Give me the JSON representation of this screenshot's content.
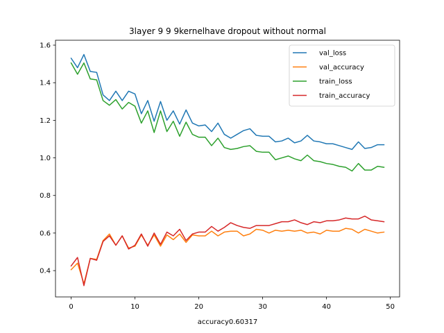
{
  "chart_data": {
    "type": "line",
    "title": "3layer  9 9 9kernelhave dropout without normal",
    "xlabel": "accuracy0.60317",
    "ylabel": "",
    "xlim": [
      -2.45,
      51.45
    ],
    "ylim": [
      0.26,
      1.626
    ],
    "xticks": [
      0,
      10,
      20,
      30,
      40,
      50
    ],
    "yticks": [
      0.4,
      0.6,
      0.8,
      1.0,
      1.2,
      1.4,
      1.6
    ],
    "ytick_labels": [
      "0.4",
      "0.6",
      "0.8",
      "1.0",
      "1.2",
      "1.4",
      "1.6"
    ],
    "grid": false,
    "legend_position": "upper-right",
    "x": [
      0,
      1,
      2,
      3,
      4,
      5,
      6,
      7,
      8,
      9,
      10,
      11,
      12,
      13,
      14,
      15,
      16,
      17,
      18,
      19,
      20,
      21,
      22,
      23,
      24,
      25,
      26,
      27,
      28,
      29,
      30,
      31,
      32,
      33,
      34,
      35,
      36,
      37,
      38,
      39,
      40,
      41,
      42,
      43,
      44,
      45,
      46,
      47,
      48,
      49
    ],
    "series": [
      {
        "name": "val_loss",
        "color": "#1f77b4",
        "values": [
          1.53,
          1.48,
          1.55,
          1.46,
          1.455,
          1.335,
          1.305,
          1.355,
          1.305,
          1.355,
          1.34,
          1.235,
          1.305,
          1.195,
          1.3,
          1.2,
          1.25,
          1.18,
          1.255,
          1.185,
          1.17,
          1.175,
          1.14,
          1.185,
          1.125,
          1.105,
          1.125,
          1.145,
          1.155,
          1.12,
          1.115,
          1.115,
          1.085,
          1.09,
          1.105,
          1.08,
          1.09,
          1.12,
          1.09,
          1.085,
          1.075,
          1.075,
          1.065,
          1.055,
          1.045,
          1.085,
          1.05,
          1.055,
          1.07,
          1.07
        ]
      },
      {
        "name": "val_accuracy",
        "color": "#ff7f0e",
        "values": [
          0.405,
          0.44,
          0.33,
          0.465,
          0.46,
          0.56,
          0.595,
          0.535,
          0.585,
          0.52,
          0.53,
          0.59,
          0.535,
          0.59,
          0.53,
          0.59,
          0.565,
          0.595,
          0.55,
          0.59,
          0.585,
          0.585,
          0.61,
          0.585,
          0.605,
          0.61,
          0.61,
          0.585,
          0.595,
          0.62,
          0.615,
          0.6,
          0.615,
          0.61,
          0.615,
          0.61,
          0.615,
          0.6,
          0.605,
          0.595,
          0.615,
          0.61,
          0.61,
          0.625,
          0.62,
          0.6,
          0.62,
          0.61,
          0.6,
          0.605
        ]
      },
      {
        "name": "train_loss",
        "color": "#2ca02c",
        "values": [
          1.505,
          1.445,
          1.505,
          1.42,
          1.415,
          1.305,
          1.28,
          1.31,
          1.26,
          1.295,
          1.275,
          1.185,
          1.25,
          1.135,
          1.25,
          1.14,
          1.195,
          1.115,
          1.19,
          1.125,
          1.11,
          1.11,
          1.065,
          1.105,
          1.055,
          1.045,
          1.05,
          1.06,
          1.065,
          1.035,
          1.03,
          1.03,
          0.99,
          1.0,
          1.01,
          0.995,
          0.985,
          1.015,
          0.985,
          0.98,
          0.97,
          0.965,
          0.955,
          0.95,
          0.93,
          0.97,
          0.935,
          0.935,
          0.955,
          0.95
        ]
      },
      {
        "name": "train_accuracy",
        "color": "#d62728",
        "values": [
          0.425,
          0.47,
          0.32,
          0.465,
          0.455,
          0.555,
          0.585,
          0.535,
          0.585,
          0.515,
          0.535,
          0.595,
          0.53,
          0.6,
          0.54,
          0.605,
          0.585,
          0.62,
          0.56,
          0.595,
          0.605,
          0.605,
          0.635,
          0.61,
          0.63,
          0.655,
          0.64,
          0.63,
          0.625,
          0.64,
          0.64,
          0.64,
          0.65,
          0.66,
          0.66,
          0.67,
          0.655,
          0.645,
          0.66,
          0.655,
          0.665,
          0.665,
          0.67,
          0.68,
          0.675,
          0.675,
          0.69,
          0.67,
          0.665,
          0.66
        ]
      }
    ]
  }
}
